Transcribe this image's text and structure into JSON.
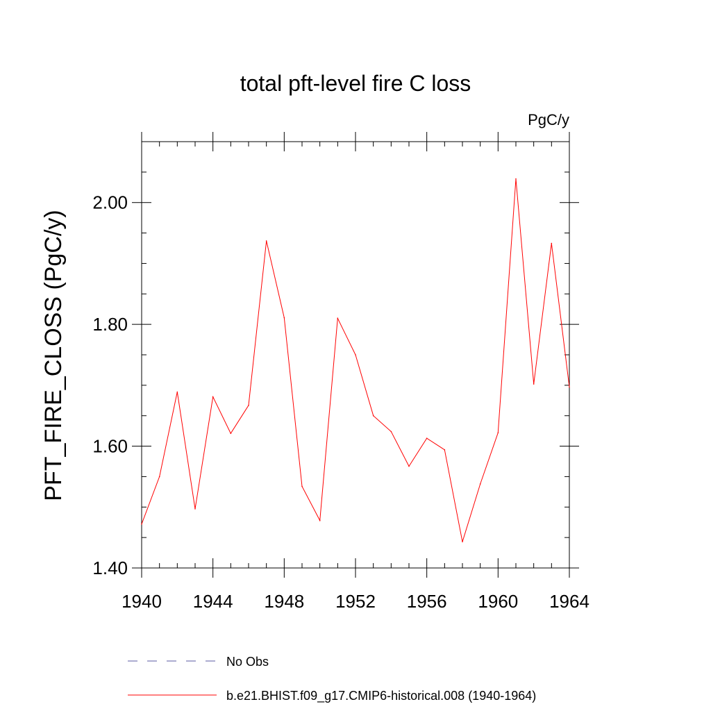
{
  "chart_data": {
    "type": "line",
    "title": "total pft-level fire C loss",
    "units_label": "PgC/y",
    "xlabel": "",
    "ylabel": "PFT_FIRE_CLOSS  (PgC/y)",
    "xlim": [
      1940,
      1964
    ],
    "ylim": [
      1.4,
      2.1
    ],
    "x_ticks": [
      "1940",
      "1944",
      "1948",
      "1952",
      "1956",
      "1960",
      "1964"
    ],
    "y_ticks": [
      "1.40",
      "1.60",
      "1.80",
      "2.00"
    ],
    "grid": false,
    "legend_position": "bottom",
    "series": [
      {
        "name": "b.e21.BHIST.f09_g17.CMIP6-historical.008 (1940-1964)",
        "color": "#ff0000",
        "line_style": "solid",
        "x": [
          1940,
          1941,
          1942,
          1943,
          1944,
          1945,
          1946,
          1947,
          1948,
          1949,
          1950,
          1951,
          1952,
          1953,
          1954,
          1955,
          1956,
          1957,
          1958,
          1959,
          1960,
          1961,
          1962,
          1963,
          1964
        ],
        "values": [
          1.472,
          1.55,
          1.689,
          1.497,
          1.681,
          1.621,
          1.667,
          1.937,
          1.811,
          1.534,
          1.478,
          1.81,
          1.75,
          1.65,
          1.624,
          1.567,
          1.613,
          1.594,
          1.443,
          1.538,
          1.622,
          2.039,
          1.702,
          1.933,
          1.697
        ]
      }
    ],
    "legend": [
      {
        "label": "No Obs",
        "color": "#5a5aa0",
        "line_style": "dashed"
      },
      {
        "label": "b.e21.BHIST.f09_g17.CMIP6-historical.008 (1940-1964)",
        "color": "#ff0000",
        "line_style": "solid"
      }
    ]
  }
}
